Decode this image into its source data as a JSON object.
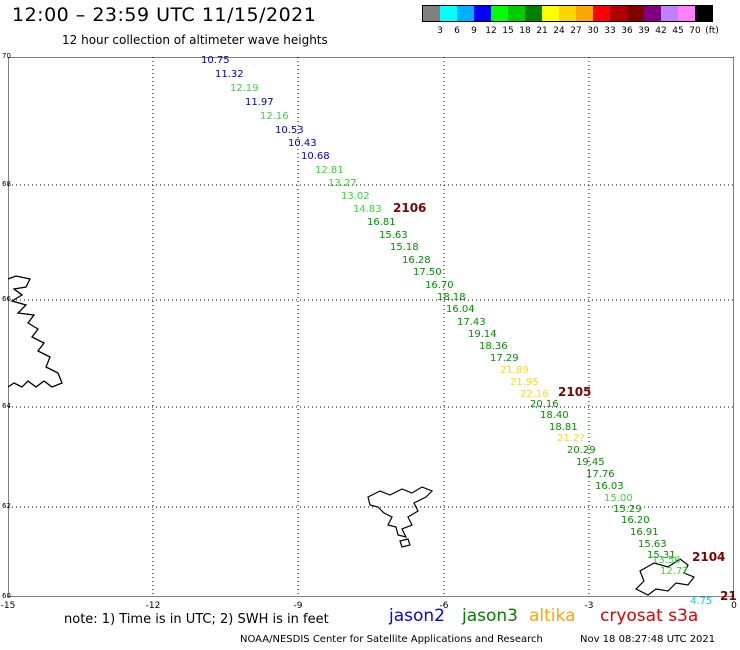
{
  "header": {
    "title": "12:00 – 23:59 UTC 11/15/2021",
    "subtitle": "12 hour collection of altimeter wave heights"
  },
  "legend": {
    "colors": [
      "#808080",
      "#00ffff",
      "#00b0ff",
      "#0000ff",
      "#00ff00",
      "#00cc00",
      "#008000",
      "#ffff00",
      "#ffd700",
      "#ffa500",
      "#ff0000",
      "#b00000",
      "#800000",
      "#800080",
      "#c080ff",
      "#ff80ff",
      "#000000"
    ],
    "labels": [
      "3",
      "6",
      "9",
      "12",
      "15",
      "18",
      "21",
      "24",
      "27",
      "30",
      "33",
      "36",
      "39",
      "42",
      "45",
      "70",
      "(ft)"
    ]
  },
  "axes": {
    "lat_labels": [
      "70",
      "68",
      "66",
      "64",
      "62",
      "60"
    ],
    "lon_labels": [
      "-15",
      "-12",
      "-9",
      "-6",
      "-3",
      "0"
    ]
  },
  "observations": [
    {
      "v": "10.75",
      "c": "#0000c0"
    },
    {
      "v": "11.32",
      "c": "#0000c0"
    },
    {
      "v": "12.19",
      "c": "#33dd33"
    },
    {
      "v": "11.97",
      "c": "#0000c0"
    },
    {
      "v": "12.16",
      "c": "#33dd33"
    },
    {
      "v": "10.53",
      "c": "#0000c0"
    },
    {
      "v": "10.43",
      "c": "#0000c0"
    },
    {
      "v": "10.68",
      "c": "#0000c0"
    },
    {
      "v": "12.81",
      "c": "#33dd33"
    },
    {
      "v": "13.27",
      "c": "#33dd33"
    },
    {
      "v": "13.02",
      "c": "#33dd33"
    },
    {
      "v": "14.83",
      "c": "#33dd33"
    },
    {
      "v": "16.81",
      "c": "#009000"
    },
    {
      "v": "15.63",
      "c": "#009000"
    },
    {
      "v": "15.18",
      "c": "#009000"
    },
    {
      "v": "16.28",
      "c": "#009000"
    },
    {
      "v": "17.50",
      "c": "#009000"
    },
    {
      "v": "16.70",
      "c": "#009000"
    },
    {
      "v": "18.18",
      "c": "#009000"
    },
    {
      "v": "16.04",
      "c": "#009000"
    },
    {
      "v": "17.43",
      "c": "#009000"
    },
    {
      "v": "19.14",
      "c": "#009000"
    },
    {
      "v": "18.36",
      "c": "#009000"
    },
    {
      "v": "17.29",
      "c": "#009000"
    },
    {
      "v": "21.89",
      "c": "#ffe000"
    },
    {
      "v": "21.95",
      "c": "#ffe000"
    },
    {
      "v": "22.16",
      "c": "#ffe000"
    },
    {
      "v": "20.16",
      "c": "#009000"
    },
    {
      "v": "18.40",
      "c": "#009000"
    },
    {
      "v": "18.81",
      "c": "#009000"
    },
    {
      "v": "21.2?",
      "c": "#ffe000"
    },
    {
      "v": "20.29",
      "c": "#009000"
    },
    {
      "v": "19.45",
      "c": "#009000"
    },
    {
      "v": "17.76",
      "c": "#009000"
    },
    {
      "v": "16.03",
      "c": "#009000"
    },
    {
      "v": "15.00",
      "c": "#33dd33"
    },
    {
      "v": "15.29",
      "c": "#009000"
    },
    {
      "v": "16.20",
      "c": "#009000"
    },
    {
      "v": "16.91",
      "c": "#009000"
    },
    {
      "v": "15.63",
      "c": "#009000"
    },
    {
      "v": "15.31",
      "c": "#009000"
    },
    {
      "v": "13.56",
      "c": "#33dd33"
    },
    {
      "v": "12.7?",
      "c": "#33dd33"
    },
    {
      "v": "4.75",
      "c": "#00dddd"
    }
  ],
  "pass_labels": [
    "2106",
    "2105",
    "2104",
    "21"
  ],
  "footer": {
    "note": "note:  1) Time is in UTC;  2) SWH is in feet",
    "satellites": [
      {
        "name": "jason2",
        "color": "#0000ff"
      },
      {
        "name": "jason3",
        "color": "#008000"
      },
      {
        "name": "altika",
        "color": "#ffa500"
      },
      {
        "name": "cryosat s3a",
        "color": "#e00000"
      }
    ],
    "credit": "NOAA/NESDIS Center for Satellite Applications and Research",
    "timestamp": "Nov 18 08:27:48 UTC 2021"
  }
}
